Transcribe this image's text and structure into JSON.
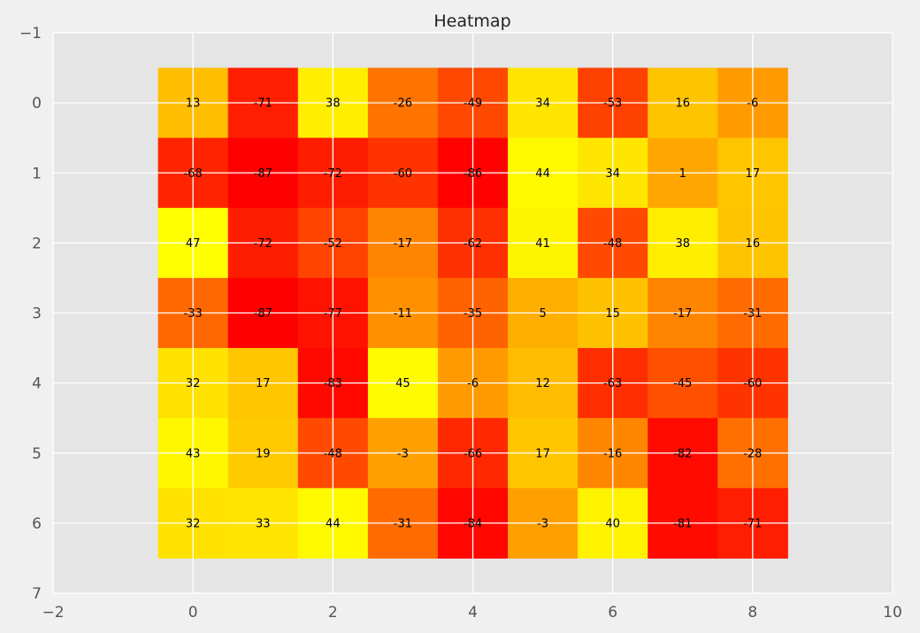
{
  "chart_data": {
    "type": "heatmap",
    "title": "Heatmap",
    "xlabel": "",
    "ylabel": "",
    "xlim": [
      -2,
      10
    ],
    "ylim": [
      7,
      -1
    ],
    "x_ticks": [
      "−2",
      "0",
      "2",
      "4",
      "6",
      "8",
      "10"
    ],
    "y_ticks": [
      "−1",
      "0",
      "1",
      "2",
      "3",
      "4",
      "5",
      "6",
      "7"
    ],
    "grid": true,
    "colormap": "autumn_r",
    "value_range": [
      -87,
      47
    ],
    "values": [
      [
        13,
        -71,
        38,
        -26,
        -49,
        34,
        -53,
        16,
        -6
      ],
      [
        -68,
        -87,
        -72,
        -60,
        -86,
        44,
        34,
        1,
        17
      ],
      [
        47,
        -72,
        -52,
        -17,
        -62,
        41,
        -48,
        38,
        16
      ],
      [
        -33,
        -87,
        -77,
        -11,
        -35,
        5,
        15,
        -17,
        -31
      ],
      [
        32,
        17,
        -83,
        45,
        -6,
        12,
        -63,
        -45,
        -60
      ],
      [
        43,
        19,
        -48,
        -3,
        -66,
        17,
        -16,
        -82,
        -28
      ],
      [
        32,
        33,
        44,
        -31,
        -84,
        -3,
        40,
        -81,
        -71
      ]
    ],
    "colors": {
      "low": "#ff0000",
      "high": "#ffff00",
      "plot_background": "#e5e5e5",
      "figure_background": "#f0f0f0",
      "grid": "#ffffff"
    }
  }
}
